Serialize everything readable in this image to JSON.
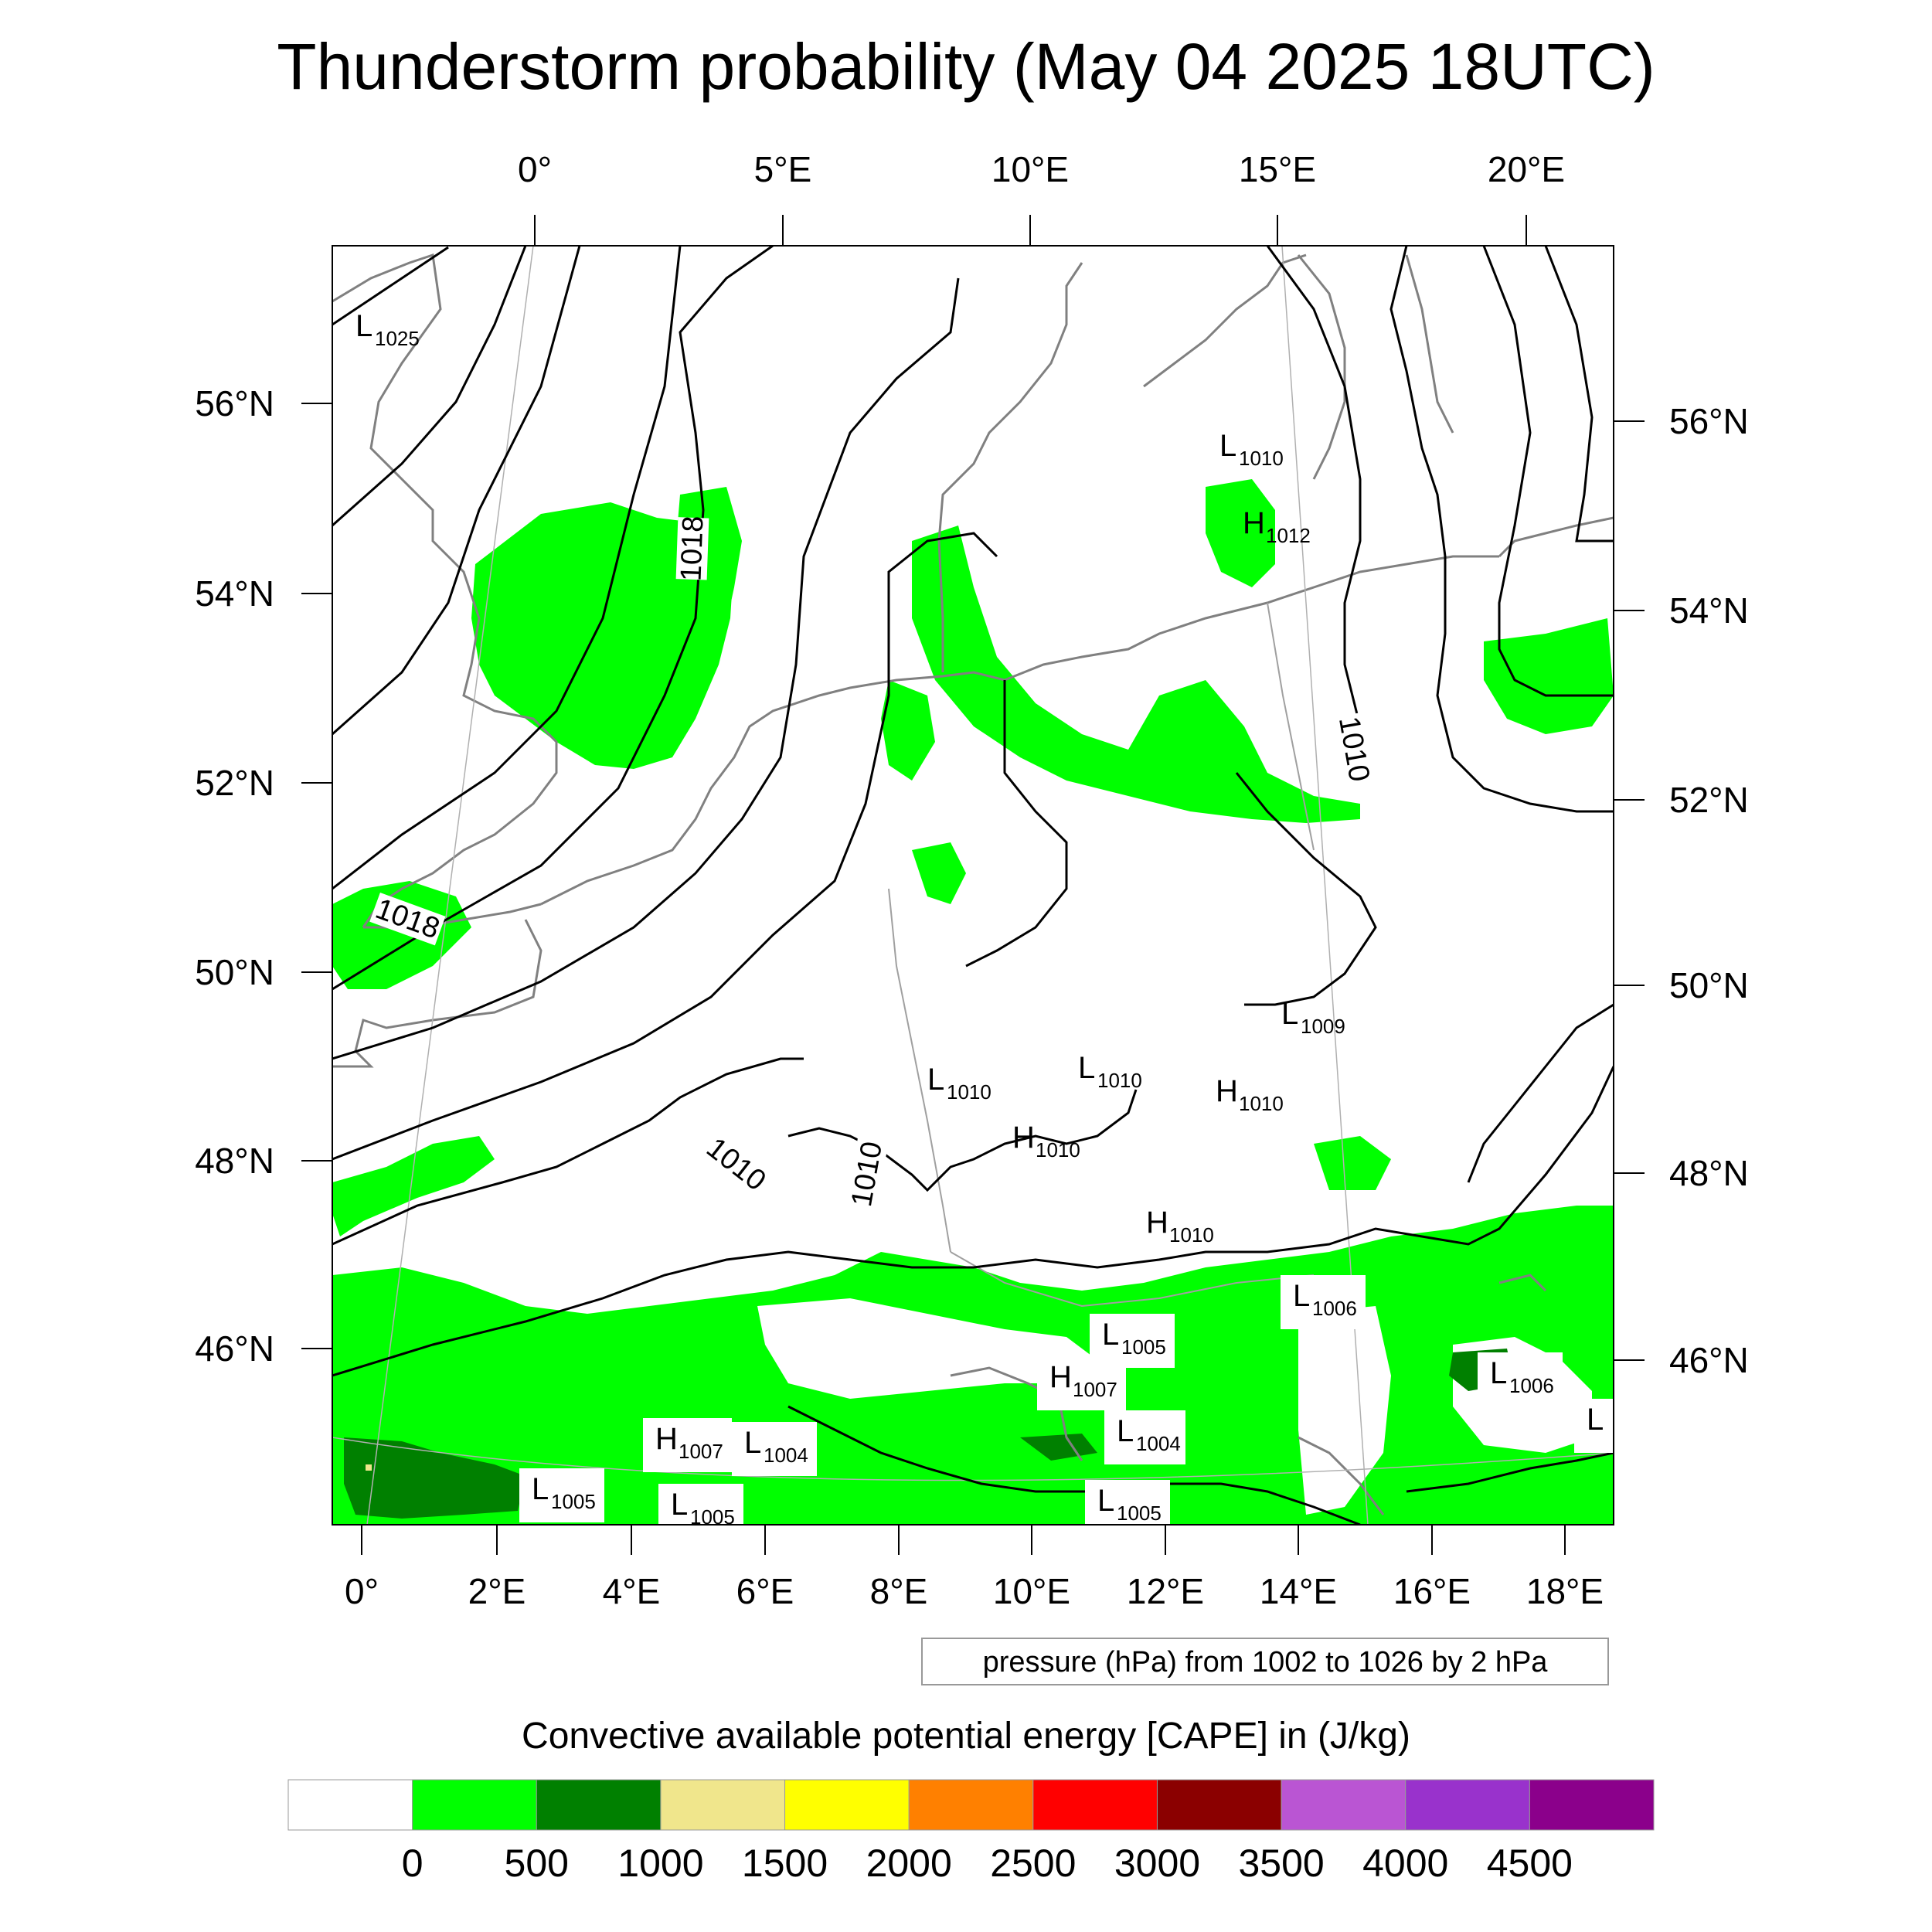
{
  "title": "Thunderstorm probability (May 04 2025 18UTC)",
  "top_lon_labels": [
    "0°",
    "5°E",
    "10°E",
    "15°E",
    "20°E"
  ],
  "bottom_lon_labels": [
    "0°",
    "2°E",
    "4°E",
    "6°E",
    "8°E",
    "10°E",
    "12°E",
    "14°E",
    "16°E",
    "18°E"
  ],
  "left_lat_labels": [
    "56°N",
    "54°N",
    "52°N",
    "50°N",
    "48°N",
    "46°N"
  ],
  "right_lat_labels": [
    "56°N",
    "54°N",
    "52°N",
    "50°N",
    "48°N",
    "46°N"
  ],
  "contour_info": "pressure (hPa) from 1002 to 1026 by 2 hPa",
  "contour_labels": [
    "1018",
    "1018",
    "1010",
    "1010",
    "1010"
  ],
  "pressure_centers": [
    {
      "type": "L",
      "value": "1025"
    },
    {
      "type": "L",
      "value": "1010"
    },
    {
      "type": "H",
      "value": "1012"
    },
    {
      "type": "L",
      "value": "1009"
    },
    {
      "type": "L",
      "value": "1010"
    },
    {
      "type": "L",
      "value": "1010"
    },
    {
      "type": "H",
      "value": "1010"
    },
    {
      "type": "H",
      "value": "1010"
    },
    {
      "type": "H",
      "value": "1010"
    },
    {
      "type": "L",
      "value": "1006"
    },
    {
      "type": "L",
      "value": "1005"
    },
    {
      "type": "H",
      "value": "1007"
    },
    {
      "type": "L",
      "value": "1006"
    },
    {
      "type": "H",
      "value": "1007"
    },
    {
      "type": "L",
      "value": "1004"
    },
    {
      "type": "L",
      "value": "1004"
    },
    {
      "type": "L",
      "value": "1005"
    },
    {
      "type": "L",
      "value": "1005"
    },
    {
      "type": "L",
      "value": "1005"
    },
    {
      "type": "L",
      "value": ""
    }
  ],
  "legend": {
    "title": "Convective available potential energy [CAPE] in (J/kg)",
    "colors": [
      "#ffffff",
      "#00ff00",
      "#008000",
      "#f0e68c",
      "#ffff00",
      "#ff8000",
      "#ff0000",
      "#8b0000",
      "#ba55d3",
      "#9932cc",
      "#8b008b"
    ],
    "tick_labels": [
      "0",
      "500",
      "1000",
      "1500",
      "2000",
      "2500",
      "3000",
      "3500",
      "4000",
      "4500"
    ]
  },
  "colors": {
    "cape_low": "#00ff00",
    "cape_mid": "#008000",
    "cape_high": "#f0e68c",
    "coastline": "#808080",
    "isobar": "#000000"
  }
}
